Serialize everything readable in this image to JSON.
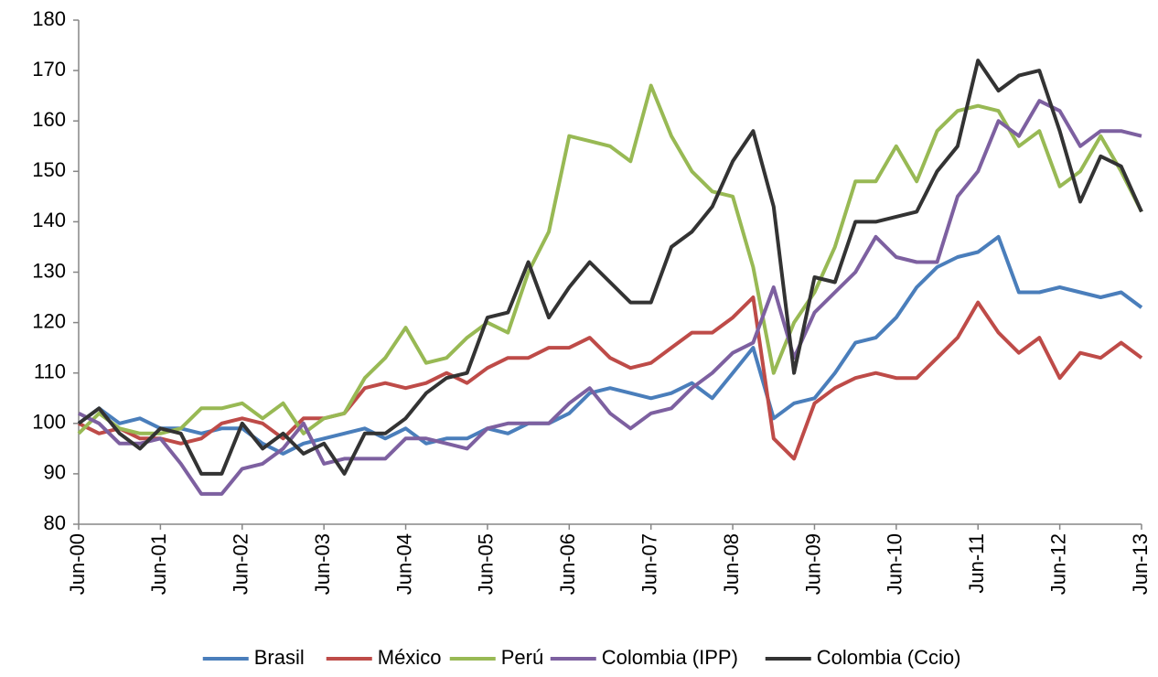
{
  "chart_data": {
    "type": "line",
    "categories": [
      "Jun-00",
      null,
      null,
      null,
      "Jun-01",
      null,
      null,
      null,
      "Jun-02",
      null,
      null,
      null,
      "Jun-03",
      null,
      null,
      null,
      "Jun-04",
      null,
      null,
      null,
      "Jun-05",
      null,
      null,
      null,
      "Jun-06",
      null,
      null,
      null,
      "Jun-07",
      null,
      null,
      null,
      "Jun-08",
      null,
      null,
      null,
      "Jun-09",
      null,
      null,
      null,
      "Jun-10",
      null,
      null,
      null,
      "Jun-11",
      null,
      null,
      null,
      "Jun-12",
      null,
      null,
      null,
      "Jun-13"
    ],
    "series": [
      {
        "name": "Brasil",
        "color": "#4a7ebb",
        "values": [
          100,
          103,
          100,
          101,
          99,
          99,
          98,
          99,
          99,
          96,
          94,
          96,
          97,
          98,
          99,
          97,
          99,
          96,
          97,
          97,
          99,
          98,
          100,
          100,
          102,
          106,
          107,
          106,
          105,
          106,
          108,
          105,
          110,
          115,
          101,
          104,
          105,
          110,
          116,
          117,
          121,
          127,
          131,
          133,
          134,
          137,
          126,
          126,
          127,
          126,
          125,
          126,
          123
        ]
      },
      {
        "name": "México",
        "color": "#be4b48",
        "values": [
          100,
          98,
          99,
          97,
          97,
          96,
          97,
          100,
          101,
          100,
          97,
          101,
          101,
          102,
          107,
          108,
          107,
          108,
          110,
          108,
          111,
          113,
          113,
          115,
          115,
          117,
          113,
          111,
          112,
          115,
          118,
          118,
          121,
          125,
          97,
          93,
          104,
          107,
          109,
          110,
          109,
          109,
          113,
          117,
          124,
          118,
          114,
          117,
          109,
          114,
          113,
          116,
          113
        ]
      },
      {
        "name": "Perú",
        "color": "#98b954",
        "values": [
          98,
          102,
          99,
          98,
          98,
          99,
          103,
          103,
          104,
          101,
          104,
          98,
          101,
          102,
          109,
          113,
          119,
          112,
          113,
          117,
          120,
          118,
          130,
          138,
          157,
          156,
          155,
          152,
          167,
          157,
          150,
          146,
          145,
          131,
          110,
          120,
          126,
          135,
          148,
          148,
          155,
          148,
          158,
          162,
          163,
          162,
          155,
          158,
          147,
          150,
          157,
          150,
          142
        ]
      },
      {
        "name": "Colombia (IPP)",
        "color": "#7d60a0",
        "values": [
          102,
          100,
          96,
          96,
          97,
          92,
          86,
          86,
          91,
          92,
          95,
          100,
          92,
          93,
          93,
          93,
          97,
          97,
          96,
          95,
          99,
          100,
          100,
          100,
          104,
          107,
          102,
          99,
          102,
          103,
          107,
          110,
          114,
          116,
          127,
          113,
          122,
          126,
          130,
          137,
          133,
          132,
          132,
          145,
          150,
          160,
          157,
          164,
          162,
          155,
          158,
          158,
          157
        ]
      },
      {
        "name": "Colombia (Ccio)",
        "color": "#333333",
        "values": [
          100,
          103,
          98,
          95,
          99,
          98,
          90,
          90,
          100,
          95,
          98,
          94,
          96,
          90,
          98,
          98,
          101,
          106,
          109,
          110,
          121,
          122,
          132,
          121,
          127,
          132,
          128,
          124,
          124,
          135,
          138,
          143,
          152,
          158,
          143,
          110,
          129,
          128,
          140,
          140,
          141,
          142,
          150,
          155,
          172,
          166,
          169,
          170,
          158,
          144,
          153,
          151,
          142
        ]
      }
    ],
    "ylim": [
      80,
      180
    ],
    "yticks": [
      80,
      90,
      100,
      110,
      120,
      130,
      140,
      150,
      160,
      170,
      180
    ],
    "grid": false,
    "legend": "bottom"
  }
}
